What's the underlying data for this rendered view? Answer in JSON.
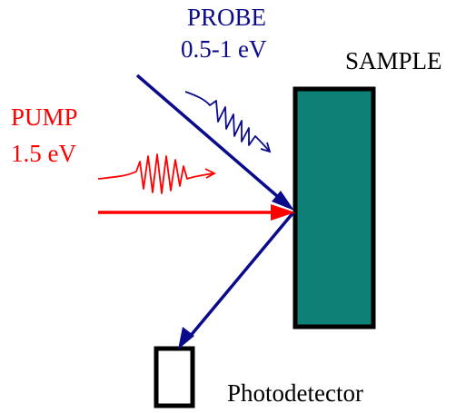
{
  "labels": {
    "probe_name": "PROBE",
    "probe_energy": "0.5-1 eV",
    "pump_name": "PUMP",
    "pump_energy": "1.5 eV",
    "sample": "SAMPLE",
    "detector": "Photodetector"
  },
  "colors": {
    "probe": "#0a0a8c",
    "pump": "#ff0000",
    "sample_fill": "#0f8076",
    "outline": "#000000",
    "background": "#ffffff"
  }
}
